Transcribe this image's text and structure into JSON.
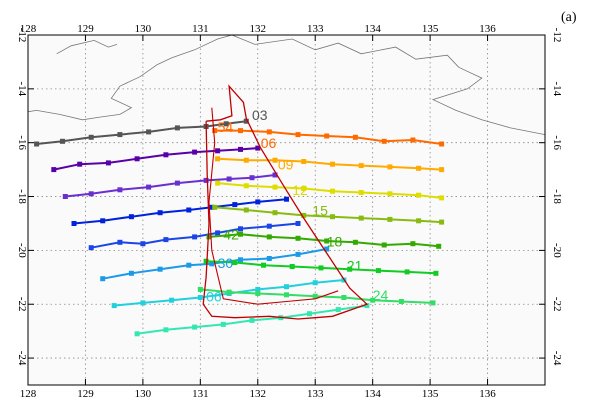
{
  "panel_label": "(a)",
  "chart_data": {
    "type": "line",
    "xlim": [
      128,
      137
    ],
    "ylim": [
      -25,
      -12
    ],
    "x_ticks": [
      128,
      129,
      130,
      131,
      132,
      133,
      134,
      135,
      136
    ],
    "y_ticks": [
      -12,
      -14,
      -16,
      -18,
      -20,
      -22,
      -24
    ],
    "x_tick_labels": [
      "128",
      "129",
      "130",
      "131",
      "132",
      "133",
      "134",
      "135",
      "136"
    ],
    "y_tick_labels": [
      "-12",
      "-14",
      "-16",
      "-18",
      "-20",
      "-22",
      "-24"
    ],
    "grid": true,
    "colors": {
      "coast": "#777777",
      "envelope": "#c00000",
      "grid": "#8a8a8a"
    },
    "coastline": [
      [
        [
          131.55,
          -12.0
        ],
        [
          131.95,
          -12.35
        ],
        [
          132.6,
          -12.15
        ],
        [
          133.0,
          -12.55
        ],
        [
          133.4,
          -12.3
        ],
        [
          133.8,
          -12.7
        ],
        [
          134.4,
          -12.45
        ],
        [
          134.75,
          -12.9
        ],
        [
          135.3,
          -12.75
        ],
        [
          135.5,
          -13.2
        ]
      ],
      [
        [
          135.5,
          -13.2
        ],
        [
          135.9,
          -13.6
        ],
        [
          135.65,
          -14.0
        ],
        [
          135.05,
          -14.4
        ],
        [
          135.45,
          -14.8
        ],
        [
          135.9,
          -15.15
        ],
        [
          136.4,
          -15.45
        ],
        [
          137.0,
          -15.7
        ]
      ],
      [
        [
          130.25,
          -13.1
        ],
        [
          129.95,
          -13.55
        ],
        [
          129.6,
          -13.9
        ],
        [
          129.45,
          -14.35
        ],
        [
          129.8,
          -14.7
        ],
        [
          129.6,
          -14.95
        ],
        [
          129.25,
          -15.05
        ],
        [
          128.95,
          -15.15
        ],
        [
          128.55,
          -14.95
        ],
        [
          128.15,
          -14.8
        ],
        [
          128.0,
          -14.85
        ]
      ],
      [
        [
          130.25,
          -13.1
        ],
        [
          130.5,
          -12.85
        ],
        [
          130.9,
          -12.55
        ],
        [
          131.3,
          -12.15
        ],
        [
          131.55,
          -12.0
        ]
      ],
      [
        [
          128.5,
          -12.7
        ],
        [
          128.75,
          -12.4
        ],
        [
          129.15,
          -12.2
        ],
        [
          129.4,
          -12.45
        ],
        [
          129.55,
          -12.35
        ]
      ]
    ],
    "envelope": [
      [
        131.1,
        -15.2
      ],
      [
        131.12,
        -17.2
      ],
      [
        131.15,
        -19.0
      ],
      [
        131.1,
        -21.0
      ],
      [
        131.05,
        -22.0
      ],
      [
        131.2,
        -22.45
      ],
      [
        131.6,
        -22.5
      ],
      [
        132.2,
        -22.45
      ],
      [
        132.7,
        -22.55
      ],
      [
        133.0,
        -22.5
      ],
      [
        133.3,
        -22.45
      ],
      [
        133.9,
        -22.0
      ],
      [
        133.6,
        -21.4
      ],
      [
        133.2,
        -20.1
      ],
      [
        132.8,
        -18.8
      ],
      [
        132.45,
        -17.6
      ],
      [
        132.05,
        -16.2
      ],
      [
        131.8,
        -15.1
      ],
      [
        131.75,
        -14.5
      ],
      [
        131.5,
        -13.9
      ],
      [
        131.55,
        -15.0
      ],
      [
        131.35,
        -15.15
      ],
      [
        131.1,
        -15.2
      ]
    ],
    "envelope_inner": [
      [
        131.2,
        -14.7
      ],
      [
        131.25,
        -16.0
      ],
      [
        131.15,
        -18.2
      ],
      [
        131.2,
        -20.0
      ],
      [
        131.4,
        -21.8
      ],
      [
        132.0,
        -22.0
      ],
      [
        132.5,
        -21.9
      ],
      [
        133.0,
        -21.8
      ],
      [
        133.4,
        -21.5
      ]
    ],
    "series": [
      {
        "name": "03",
        "color": "#555555",
        "label_x": 131.9,
        "label_y": -15.15,
        "x": [
          128.15,
          128.6,
          129.1,
          129.6,
          130.1,
          130.6,
          131.1,
          131.45,
          131.8
        ],
        "y": [
          -16.05,
          -15.95,
          -15.8,
          -15.7,
          -15.6,
          -15.45,
          -15.4,
          -15.3,
          -15.2
        ]
      },
      {
        "name": "06",
        "color": "#ff6a00",
        "label_x": 132.05,
        "label_y": -16.2,
        "x": [
          131.25,
          131.7,
          132.2,
          132.7,
          133.2,
          133.7,
          134.2,
          134.7,
          135.2
        ],
        "y": [
          -15.55,
          -15.55,
          -15.6,
          -15.7,
          -15.75,
          -15.8,
          -15.95,
          -15.9,
          -16.05
        ]
      },
      {
        "name": "06",
        "color": "#5a00a8",
        "label_x": 132.05,
        "label_y": -16.2,
        "x": [
          128.45,
          128.9,
          129.4,
          129.9,
          130.4,
          130.9,
          131.3,
          131.7,
          132.0
        ],
        "y": [
          -17.0,
          -16.8,
          -16.75,
          -16.6,
          -16.45,
          -16.35,
          -16.3,
          -16.25,
          -16.2
        ]
      },
      {
        "name": "09",
        "color": "#ffaa00",
        "label_x": 132.35,
        "label_y": -17.0,
        "x": [
          131.3,
          131.8,
          132.3,
          132.8,
          133.3,
          133.8,
          134.3,
          134.8,
          135.2
        ],
        "y": [
          -16.6,
          -16.65,
          -16.65,
          -16.7,
          -16.8,
          -16.85,
          -16.9,
          -16.95,
          -17.0
        ]
      },
      {
        "name": "09",
        "color": "#6a2fd0",
        "label_x": 132.35,
        "label_y": -17.0,
        "x": [
          128.65,
          129.1,
          129.6,
          130.1,
          130.6,
          131.1,
          131.5,
          131.9,
          132.3
        ],
        "y": [
          -18.0,
          -17.9,
          -17.75,
          -17.65,
          -17.5,
          -17.4,
          -17.35,
          -17.3,
          -17.2
        ]
      },
      {
        "name": "12",
        "color": "#dddd00",
        "label_x": 132.6,
        "label_y": -17.95,
        "x": [
          131.3,
          131.8,
          132.3,
          132.8,
          133.3,
          133.8,
          134.3,
          134.8,
          135.2
        ],
        "y": [
          -17.5,
          -17.6,
          -17.65,
          -17.7,
          -17.8,
          -17.85,
          -17.9,
          -17.95,
          -18.05
        ]
      },
      {
        "name": "12",
        "color": "#0022dd",
        "label_x": 132.6,
        "label_y": -17.95,
        "x": [
          128.8,
          129.3,
          129.8,
          130.3,
          130.8,
          131.2,
          131.6,
          132.0,
          132.5
        ],
        "y": [
          -19.0,
          -18.9,
          -18.75,
          -18.6,
          -18.5,
          -18.4,
          -18.3,
          -18.2,
          -18.1
        ]
      },
      {
        "name": "15",
        "color": "#88bb11",
        "label_x": 132.95,
        "label_y": -18.7,
        "x": [
          131.25,
          131.8,
          132.3,
          132.8,
          133.3,
          133.8,
          134.3,
          134.8,
          135.2
        ],
        "y": [
          -18.4,
          -18.5,
          -18.6,
          -18.7,
          -18.75,
          -18.8,
          -18.85,
          -18.9,
          -18.95
        ]
      },
      {
        "name": "15",
        "color": "#1a46e8",
        "label_x": 132.95,
        "label_y": -18.7,
        "x": [
          129.1,
          129.6,
          130.0,
          130.4,
          130.9,
          131.3,
          131.7,
          132.2,
          132.7
        ],
        "y": [
          -19.9,
          -19.7,
          -19.75,
          -19.6,
          -19.5,
          -19.35,
          -19.2,
          -19.1,
          -19.0
        ]
      },
      {
        "name": "18",
        "color": "#33aa00",
        "label_x": 133.2,
        "label_y": -19.85,
        "x": [
          131.15,
          131.7,
          132.2,
          132.7,
          133.2,
          133.7,
          134.2,
          134.7,
          135.15
        ],
        "y": [
          -19.5,
          -19.4,
          -19.5,
          -19.55,
          -19.65,
          -19.7,
          -19.8,
          -19.75,
          -19.85
        ]
      },
      {
        "name": "18",
        "color": "#1a9ae8",
        "label_x": 133.2,
        "label_y": -19.85,
        "x": [
          129.3,
          129.8,
          130.3,
          130.8,
          131.2,
          131.7,
          132.2,
          132.7,
          133.2
        ],
        "y": [
          -21.05,
          -20.85,
          -20.7,
          -20.55,
          -20.5,
          -20.35,
          -20.3,
          -20.15,
          -19.95
        ]
      },
      {
        "name": "21",
        "color": "#11cc22",
        "label_x": 133.55,
        "label_y": -20.75,
        "x": [
          131.1,
          131.6,
          132.1,
          132.6,
          133.1,
          133.6,
          134.1,
          134.6,
          135.1
        ],
        "y": [
          -20.4,
          -20.45,
          -20.55,
          -20.6,
          -20.65,
          -20.7,
          -20.75,
          -20.8,
          -20.85
        ]
      },
      {
        "name": "21",
        "color": "#22d0dd",
        "label_x": 133.55,
        "label_y": -20.75,
        "x": [
          129.5,
          130.0,
          130.5,
          131.0,
          131.5,
          132.0,
          132.5,
          133.0,
          133.5
        ],
        "y": [
          -22.05,
          -21.95,
          -21.85,
          -21.75,
          -21.6,
          -21.45,
          -21.35,
          -21.2,
          -21.1
        ]
      },
      {
        "name": "24",
        "color": "#33dd66",
        "label_x": 134.0,
        "label_y": -21.85,
        "x": [
          131.0,
          131.5,
          132.0,
          132.5,
          133.0,
          133.5,
          134.0,
          134.5,
          135.05
        ],
        "y": [
          -21.45,
          -21.55,
          -21.6,
          -21.65,
          -21.7,
          -21.75,
          -21.85,
          -21.9,
          -21.95
        ]
      },
      {
        "name": "24",
        "color": "#33e8b0",
        "label_x": 134.0,
        "label_y": -21.85,
        "x": [
          129.9,
          130.4,
          130.9,
          131.4,
          131.9,
          132.4,
          132.9,
          133.4,
          133.9
        ],
        "y": [
          -23.1,
          -22.95,
          -22.85,
          -22.75,
          -22.6,
          -22.5,
          -22.35,
          -22.2,
          -22.05
        ]
      }
    ],
    "side_labels": [
      {
        "text": "54",
        "color": "#ff6a00",
        "x": 131.3,
        "y": -15.6
      },
      {
        "text": "42",
        "color": "#33aa00",
        "x": 131.4,
        "y": -19.6
      },
      {
        "text": "30",
        "color": "#1a9ae8",
        "x": 131.3,
        "y": -20.65
      },
      {
        "text": "06",
        "color": "#22d0dd",
        "x": 131.1,
        "y": -21.9
      }
    ]
  }
}
